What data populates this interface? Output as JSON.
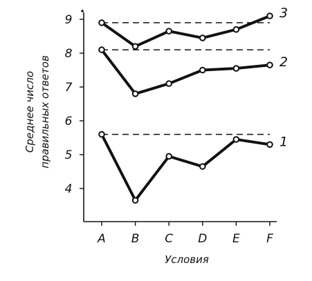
{
  "chart_data": {
    "type": "line",
    "categories": [
      "A",
      "B",
      "C",
      "D",
      "E",
      "F"
    ],
    "xlabel": "Условия",
    "ylabel": [
      "Среднее число",
      "правильных ответов"
    ],
    "ylim": [
      3,
      9.3
    ],
    "yticks": [
      "4",
      "5",
      "6",
      "7",
      "8",
      "9"
    ],
    "grid": false,
    "series": [
      {
        "name": "1",
        "values": [
          5.6,
          3.65,
          4.95,
          4.65,
          5.45,
          5.3
        ],
        "baseline": 5.6
      },
      {
        "name": "2",
        "values": [
          8.1,
          6.8,
          7.1,
          7.5,
          7.55,
          7.65
        ],
        "baseline": 8.1
      },
      {
        "name": "3",
        "values": [
          8.9,
          8.2,
          8.65,
          8.45,
          8.7,
          9.1
        ],
        "baseline": 8.9
      }
    ],
    "colors": {
      "ink": "#111111",
      "marker_fill": "#ffffff"
    }
  }
}
